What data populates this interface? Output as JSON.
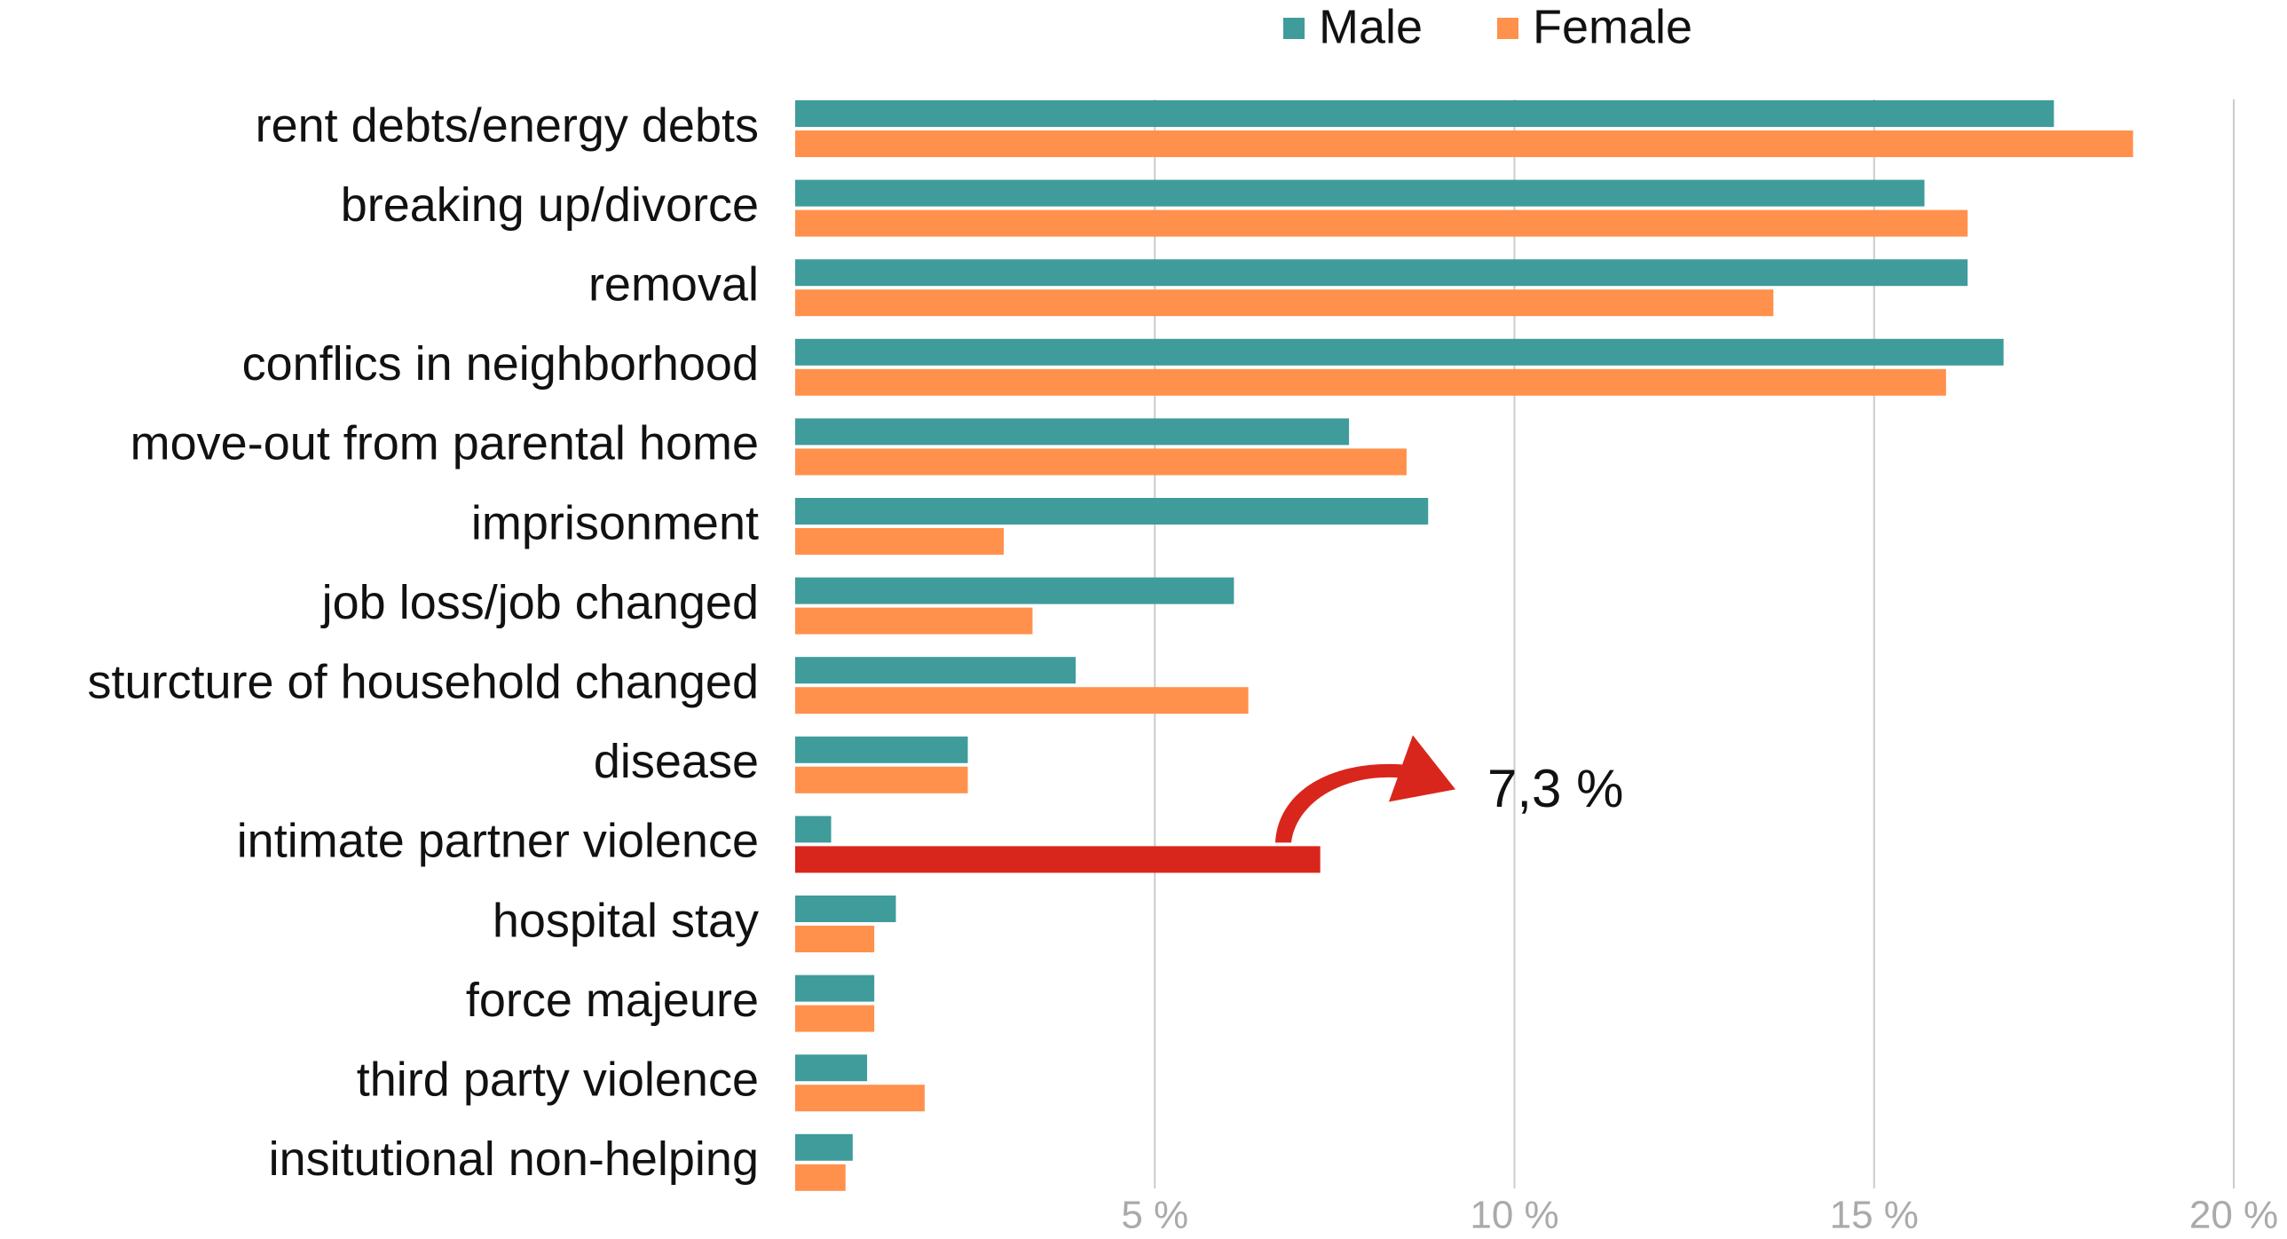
{
  "chart_data": {
    "type": "hbar",
    "categories": [
      "rent debts/energy debts",
      "breaking up/divorce",
      "removal",
      "conflics in neighborhood",
      "move-out from parental home",
      "imprisonment",
      "job loss/job changed",
      "sturcture of household changed",
      "disease",
      "intimate partner violence",
      "hospital stay",
      "force majeure",
      "third party violence",
      "insitutional non-helping"
    ],
    "series": [
      {
        "name": "Male",
        "color": "#3f9c9b",
        "values": [
          17.5,
          15.7,
          16.3,
          16.8,
          7.7,
          8.8,
          6.1,
          3.9,
          2.4,
          0.5,
          1.4,
          1.1,
          1.0,
          0.8
        ]
      },
      {
        "name": "Female",
        "color": "#ff914d",
        "values": [
          18.6,
          16.3,
          13.6,
          16.0,
          8.5,
          2.9,
          3.3,
          6.3,
          2.4,
          7.3,
          1.1,
          1.1,
          1.8,
          0.7
        ]
      }
    ],
    "highlight": {
      "series": 1,
      "category": "intimate partner violence",
      "color": "#d9261c"
    },
    "annotation": "7,3 %",
    "xlim": [
      0,
      20
    ],
    "xticks": [
      {
        "value": 5,
        "label": "5 %"
      },
      {
        "value": 10,
        "label": "10 %"
      },
      {
        "value": 15,
        "label": "15 %"
      },
      {
        "value": 20,
        "label": "20 %"
      }
    ],
    "grid": true,
    "legend": "top"
  }
}
